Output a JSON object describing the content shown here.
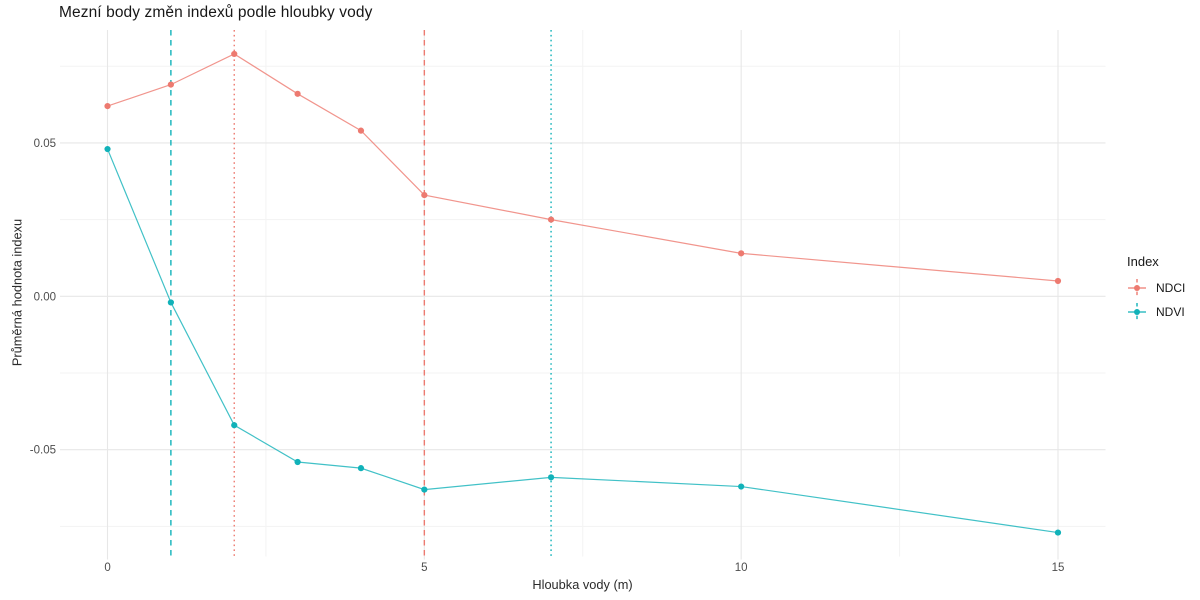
{
  "page": {
    "title": "Mezní body změn indexů podle hloubky vody"
  },
  "chart_data": {
    "type": "line",
    "title": "Mezní body změn indexů podle hloubky vody",
    "xlabel": "Hloubka vody (m)",
    "ylabel": "Průměrná hodnota indexu",
    "legend_title": "Index",
    "legend_position": "right",
    "background_color": "#FFFFFF",
    "tick_text_color": "#4D4D4D",
    "grid": {
      "major_color": "#E7E7E7",
      "minor_color": "#F3F3F3",
      "x_major": [
        0,
        5,
        10,
        15
      ],
      "x_minor": [
        2.5,
        7.5,
        12.5
      ],
      "y_major": [
        0.05,
        0,
        -0.05
      ],
      "y_minor": [
        0.075,
        0.025,
        -0.025,
        -0.075
      ]
    },
    "xlim": [
      -0.75,
      15.75
    ],
    "ylim": [
      -0.0848,
      0.0868
    ],
    "x_ticks": [
      0,
      5,
      10,
      15
    ],
    "y_ticks": [
      0.05,
      0,
      -0.05
    ],
    "x": [
      0,
      1,
      2,
      3,
      4,
      5,
      7,
      10,
      15
    ],
    "series": [
      {
        "name": "NDCI",
        "color": "#ED7A70",
        "values": [
          0.062,
          0.069,
          0.079,
          0.066,
          0.054,
          0.033,
          0.025,
          0.014,
          0.005
        ]
      },
      {
        "name": "NDVI",
        "color": "#11B2B9",
        "values": [
          0.048,
          -0.002,
          -0.042,
          -0.054,
          -0.056,
          -0.063,
          -0.059,
          -0.062,
          -0.077
        ]
      }
    ],
    "vlines": [
      {
        "x": 1,
        "color": "#11B2B9",
        "style": "dashed"
      },
      {
        "x": 2,
        "color": "#ED7A70",
        "style": "dotted"
      },
      {
        "x": 5,
        "color": "#ED7A70",
        "style": "dashed"
      },
      {
        "x": 7,
        "color": "#11B2B9",
        "style": "dotted"
      }
    ]
  }
}
